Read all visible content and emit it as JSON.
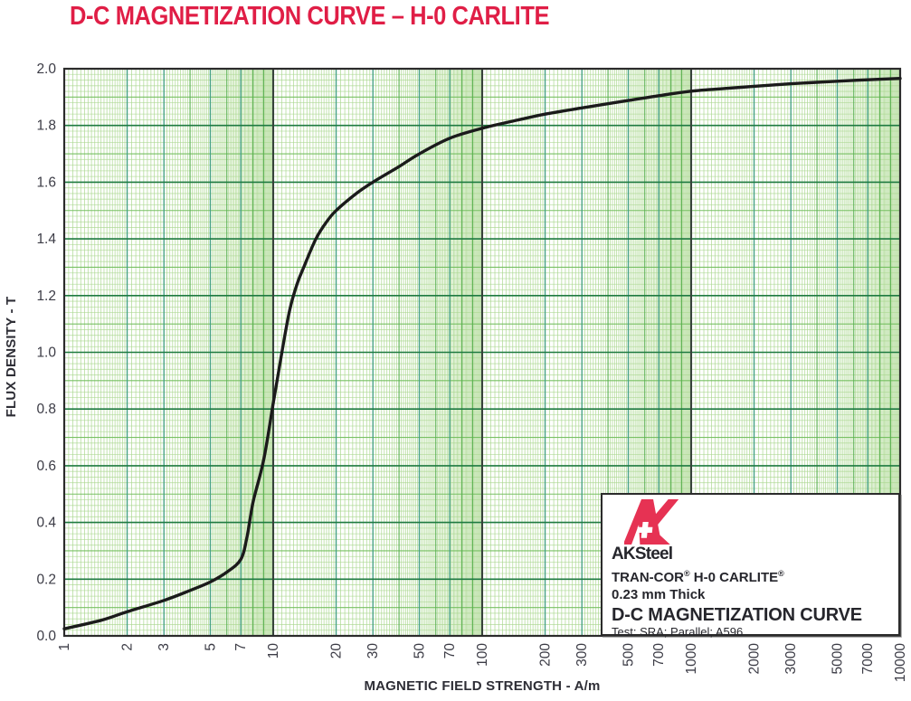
{
  "title": "D-C MAGNETIZATION CURVE – H-0 CARLITE",
  "colors": {
    "title_red": "#E01E46",
    "logo_red": "#E63253",
    "curve": "#1B1B1B",
    "grid_minor_v": "#A9D78E",
    "grid_minor_h": "#B4DB9B",
    "grid_int": "#5BB150",
    "grid_labeled": "#44A083",
    "grid_medium_h": "#72BE5D",
    "grid_major_h": "#1E7A41",
    "grid_decade": "#36423A",
    "plot_border": "#2B2B2B",
    "tick_text": "#3C3C46",
    "axis_title_text": "#2E2E36",
    "box_text": "#26262C"
  },
  "chart_data": {
    "type": "line",
    "title": "D-C MAGNETIZATION CURVE – H-0 CARLITE",
    "xlabel": "MAGNETIC FIELD STRENGTH - A/m",
    "ylabel": "FLUX DENSITY - T",
    "x_scale": "log",
    "xlim": [
      1,
      10000
    ],
    "ylim": [
      0.0,
      2.0
    ],
    "grid": "fine green log graph paper, minor 0.02 T horizontal, log minors vertical",
    "legend_position": "bottom-right inset box",
    "x_ticks": [
      "1",
      "2",
      "3",
      "5",
      "7",
      "10",
      "20",
      "30",
      "50",
      "70",
      "100",
      "200",
      "300",
      "500",
      "700",
      "1000",
      "2000",
      "3000",
      "5000",
      "7000",
      "10000"
    ],
    "y_ticks": [
      "0.0",
      "0.2",
      "0.4",
      "0.6",
      "0.8",
      "1.0",
      "1.2",
      "1.4",
      "1.6",
      "1.8",
      "2.0"
    ],
    "series": [
      {
        "name": "D-C magnetization curve (B vs H)",
        "x": [
          1,
          1.5,
          2,
          3,
          4,
          5,
          6,
          7,
          7.5,
          8,
          9,
          10,
          11,
          12,
          13,
          14,
          16,
          18,
          20,
          25,
          30,
          40,
          50,
          70,
          100,
          150,
          200,
          300,
          500,
          700,
          1000,
          1500,
          2000,
          3000,
          5000,
          7000,
          10000
        ],
        "y": [
          0.025,
          0.055,
          0.085,
          0.125,
          0.16,
          0.19,
          0.225,
          0.27,
          0.35,
          0.47,
          0.62,
          0.82,
          1.0,
          1.15,
          1.24,
          1.3,
          1.4,
          1.46,
          1.5,
          1.56,
          1.6,
          1.655,
          1.7,
          1.755,
          1.79,
          1.82,
          1.84,
          1.862,
          1.888,
          1.905,
          1.921,
          1.931,
          1.938,
          1.947,
          1.956,
          1.961,
          1.966
        ]
      }
    ]
  },
  "legend_box": {
    "brand": "AKSteel",
    "product": {
      "p0": "TRAN-COR",
      "r0": "®",
      "p1": " H-0 CARLITE",
      "r1": "®"
    },
    "thickness": "0.23 mm Thick",
    "curve_title": "D-C MAGNETIZATION CURVE",
    "test_note": "Test: SRA; Parallel; A596"
  }
}
